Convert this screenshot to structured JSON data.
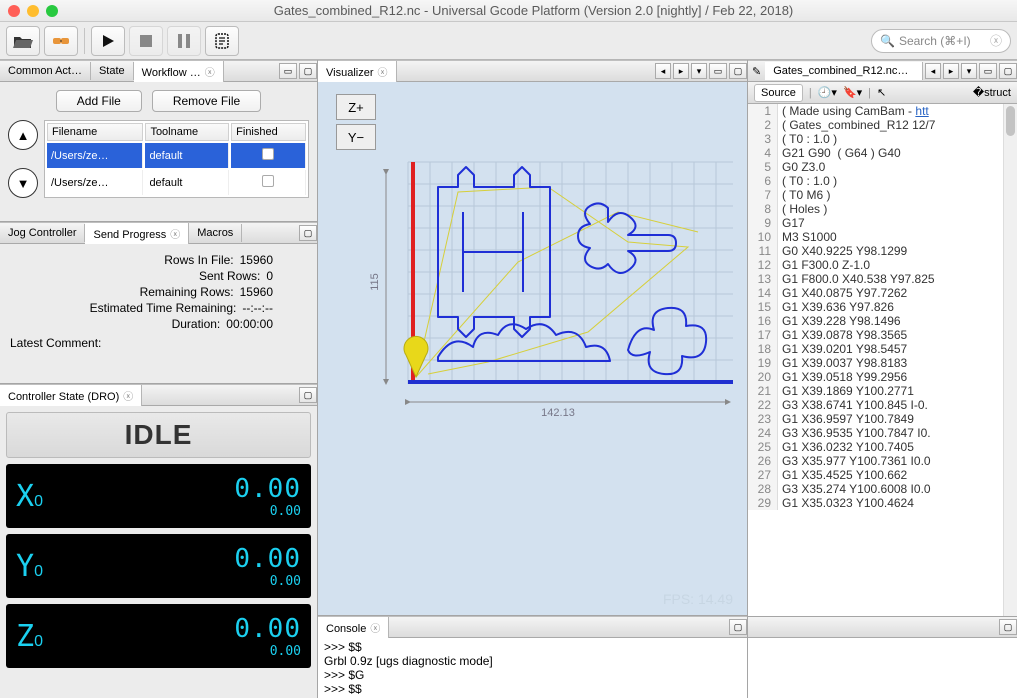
{
  "window": {
    "title": "Gates_combined_R12.nc - Universal Gcode Platform (Version 2.0 [nightly]  / Feb 22, 2018)"
  },
  "toolbar": {
    "search_placeholder": "Search (⌘+I)"
  },
  "left_tabs": {
    "common": "Common Act…",
    "state": "State",
    "workflow": "Workflow …"
  },
  "workflow": {
    "add": "Add File",
    "remove": "Remove File",
    "cols": {
      "filename": "Filename",
      "toolname": "Toolname",
      "finished": "Finished"
    },
    "rows": [
      {
        "filename": "/Users/ze…",
        "toolname": "default",
        "finished": false,
        "selected": true
      },
      {
        "filename": "/Users/ze…",
        "toolname": "default",
        "finished": false,
        "selected": false
      }
    ]
  },
  "mid_tabs": {
    "jog": "Jog Controller",
    "send": "Send Progress",
    "macros": "Macros"
  },
  "progress": {
    "rows_in_file_k": "Rows In File:",
    "rows_in_file_v": "15960",
    "sent_rows_k": "Sent Rows:",
    "sent_rows_v": "0",
    "remaining_k": "Remaining Rows:",
    "remaining_v": "15960",
    "eta_k": "Estimated Time Remaining:",
    "eta_v": "--:--:--",
    "duration_k": "Duration:",
    "duration_v": "00:00:00",
    "latest_k": "Latest Comment:"
  },
  "dro": {
    "title": "Controller State (DRO)",
    "idle": "IDLE",
    "axes": [
      {
        "label": "X",
        "sub": "0",
        "big": "0.00",
        "small": "0.00"
      },
      {
        "label": "Y",
        "sub": "0",
        "big": "0.00",
        "small": "0.00"
      },
      {
        "label": "Z",
        "sub": "0",
        "big": "0.00",
        "small": "0.00"
      }
    ]
  },
  "visualizer": {
    "title": "Visualizer",
    "zplus": "Z+",
    "yminus": "Y−",
    "width_label": "142.13",
    "height_label": "115",
    "fps": "FPS: 14.49",
    "colors": {
      "bg": "#d3e1ef",
      "grid": "#b7c7d8",
      "origin_x": "#e02020",
      "origin_y": "#2030d0",
      "path": "#1f2fd6",
      "rapids": "#d6cf3a",
      "marker": "#e8d81a"
    }
  },
  "console": {
    "title": "Console",
    "lines": [
      ">>> $$",
      "Grbl 0.9z [ugs diagnostic mode]",
      ">>> $G",
      ">>> $$"
    ]
  },
  "editor": {
    "filename": "Gates_combined_R12.nc…",
    "source_label": "Source",
    "lines": [
      "( Made using CamBam - htt",
      "( Gates_combined_R12 12/7",
      "( T0 : 1.0 )",
      "G21 G90  ( G64 ) G40",
      "G0 Z3.0",
      "( T0 : 1.0 )",
      "( T0 M6 )",
      "( Holes )",
      "G17",
      "M3 S1000",
      "G0 X40.9225 Y98.1299",
      "G1 F300.0 Z-1.0",
      "G1 F800.0 X40.538 Y97.825",
      "G1 X40.0875 Y97.7262",
      "G1 X39.636 Y97.826",
      "G1 X39.228 Y98.1496",
      "G1 X39.0878 Y98.3565",
      "G1 X39.0201 Y98.5457",
      "G1 X39.0037 Y98.8183",
      "G1 X39.0518 Y99.2956",
      "G1 X39.1869 Y100.2771",
      "G3 X38.6741 Y100.845 I-0.",
      "G1 X36.9597 Y100.7849",
      "G3 X36.9535 Y100.7847 I0.",
      "G1 X36.0232 Y100.7405",
      "G3 X35.977 Y100.7361 I0.0",
      "G1 X35.4525 Y100.662",
      "G3 X35.274 Y100.6008 I0.0",
      "G1 X35.0323 Y100.4624"
    ]
  }
}
